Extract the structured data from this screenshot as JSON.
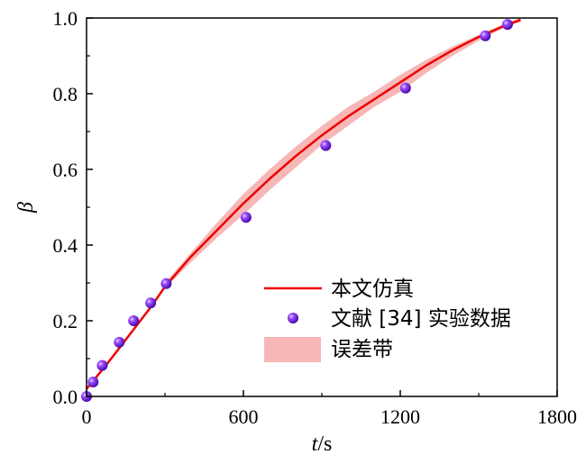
{
  "chart_data": {
    "type": "line",
    "xlabel_italic": "t",
    "xlabel_rest": "/s",
    "ylabel": "β",
    "xlim": [
      0,
      1800
    ],
    "ylim": [
      0,
      1.0
    ],
    "xticks": [
      0,
      600,
      1200,
      1800
    ],
    "xtick_labels": [
      "0",
      "600",
      "1200",
      "1800"
    ],
    "yticks": [
      0,
      0.2,
      0.4,
      0.6,
      0.8,
      1.0
    ],
    "ytick_labels": [
      "0.0",
      "0.2",
      "0.4",
      "0.6",
      "0.8",
      "1.0"
    ],
    "grid": false,
    "legend_position": "bottom-right",
    "series": [
      {
        "name": "本文仿真",
        "kind": "line",
        "color": "#ee0000",
        "x": [
          0,
          30,
          60,
          100,
          150,
          200,
          250,
          300,
          400,
          500,
          600,
          700,
          800,
          900,
          1000,
          1100,
          1200,
          1300,
          1400,
          1500,
          1600,
          1660
        ],
        "y": [
          0.02,
          0.045,
          0.07,
          0.105,
          0.15,
          0.195,
          0.24,
          0.29,
          0.37,
          0.44,
          0.51,
          0.575,
          0.635,
          0.69,
          0.74,
          0.785,
          0.83,
          0.875,
          0.915,
          0.95,
          0.98,
          0.995
        ]
      },
      {
        "name": "文献 [34] 实验数据",
        "kind": "scatter",
        "color": "#7a1fe0",
        "x": [
          0,
          25,
          60,
          125,
          180,
          245,
          305,
          610,
          915,
          1220,
          1525,
          1610
        ],
        "y": [
          0.0,
          0.038,
          0.082,
          0.143,
          0.2,
          0.247,
          0.298,
          0.473,
          0.663,
          0.815,
          0.953,
          0.983
        ]
      },
      {
        "name": "误差带",
        "kind": "band",
        "color": "#f7b7b7",
        "x": [
          300,
          400,
          500,
          600,
          700,
          800,
          900,
          1000,
          1100,
          1200,
          1300,
          1400,
          1500,
          1600,
          1660
        ],
        "upper": [
          0.3,
          0.38,
          0.46,
          0.535,
          0.6,
          0.66,
          0.715,
          0.765,
          0.805,
          0.85,
          0.89,
          0.925,
          0.955,
          0.985,
          1.0
        ],
        "lower": [
          0.285,
          0.355,
          0.42,
          0.48,
          0.545,
          0.605,
          0.665,
          0.715,
          0.765,
          0.805,
          0.855,
          0.9,
          0.94,
          0.975,
          0.99
        ]
      }
    ]
  }
}
